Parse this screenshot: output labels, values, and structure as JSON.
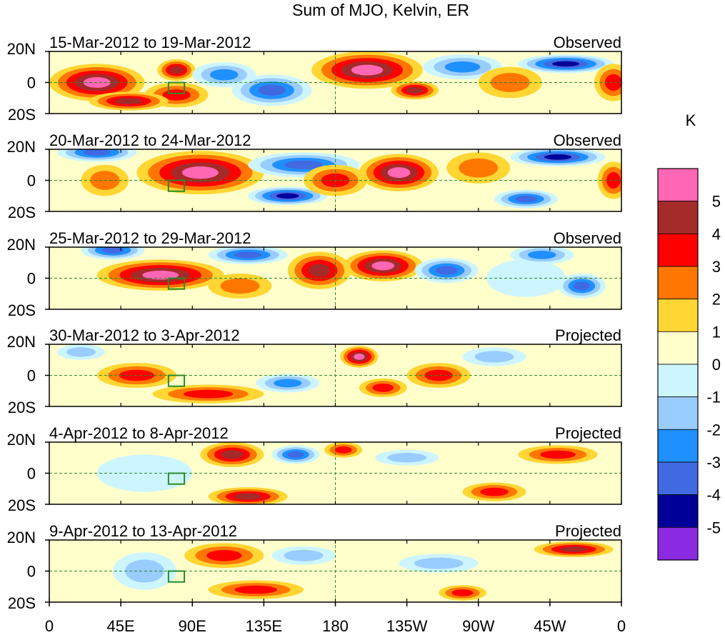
{
  "chart_data": {
    "type": "heatmap",
    "title": "Sum of MJO, Kelvin, ER",
    "colorbar": {
      "unit": "K",
      "labels": [
        "5",
        "4",
        "3",
        "2",
        "1",
        "0",
        "-1",
        "-2",
        "-3",
        "-4",
        "-5"
      ],
      "colors": [
        "#ff66b3",
        "#a52a2a",
        "#ff0000",
        "#ff7700",
        "#ffd633",
        "#ffffcc",
        "#ccf5ff",
        "#99ccff",
        "#1e90ff",
        "#4169e1",
        "#000099",
        "#8a2be2"
      ]
    },
    "x_ticks": [
      "0",
      "45E",
      "90E",
      "135E",
      "180",
      "135W",
      "90W",
      "45W",
      "0"
    ],
    "y_ticks": [
      "20N",
      "0",
      "20S"
    ],
    "xlim": [
      0,
      360
    ],
    "ylim": [
      -20,
      20
    ],
    "panels": [
      {
        "period": "15-Mar-2012 to 19-Mar-2012",
        "kind": "Observed"
      },
      {
        "period": "20-Mar-2012 to 24-Mar-2012",
        "kind": "Observed"
      },
      {
        "period": "25-Mar-2012 to 29-Mar-2012",
        "kind": "Observed"
      },
      {
        "period": "30-Mar-2012 to 3-Apr-2012",
        "kind": "Projected"
      },
      {
        "period": "4-Apr-2012 to 8-Apr-2012",
        "kind": "Projected"
      },
      {
        "period": "9-Apr-2012 to 13-Apr-2012",
        "kind": "Projected"
      }
    ],
    "blobs": [
      [
        {
          "lon": 30,
          "lat": 0,
          "level": 5,
          "rlon": 30,
          "rlat": 12
        },
        {
          "lon": 80,
          "lat": 8,
          "level": 4,
          "rlon": 12,
          "rlat": 7
        },
        {
          "lon": 80,
          "lat": -8,
          "level": 3,
          "rlon": 20,
          "rlat": 8
        },
        {
          "lon": 50,
          "lat": -12,
          "level": 4,
          "rlon": 25,
          "rlat": 6
        },
        {
          "lon": 140,
          "lat": -5,
          "level": -4,
          "rlon": 25,
          "rlat": 10
        },
        {
          "lon": 110,
          "lat": 5,
          "level": -3,
          "rlon": 20,
          "rlat": 8
        },
        {
          "lon": 200,
          "lat": 8,
          "level": 5,
          "rlon": 35,
          "rlat": 12
        },
        {
          "lon": 230,
          "lat": -5,
          "level": 4,
          "rlon": 15,
          "rlat": 6
        },
        {
          "lon": 260,
          "lat": 10,
          "level": -3,
          "rlon": 25,
          "rlat": 8
        },
        {
          "lon": 290,
          "lat": 0,
          "level": 2,
          "rlon": 20,
          "rlat": 10
        },
        {
          "lon": 325,
          "lat": 12,
          "level": -5,
          "rlon": 30,
          "rlat": 6
        },
        {
          "lon": 355,
          "lat": 0,
          "level": 3,
          "rlon": 12,
          "rlat": 12
        }
      ],
      [
        {
          "lon": 95,
          "lat": 5,
          "level": 5,
          "rlon": 40,
          "rlat": 14
        },
        {
          "lon": 30,
          "lat": 18,
          "level": -4,
          "rlon": 25,
          "rlat": 6
        },
        {
          "lon": 35,
          "lat": 0,
          "level": 2,
          "rlon": 15,
          "rlat": 10
        },
        {
          "lon": 160,
          "lat": 10,
          "level": -4,
          "rlon": 35,
          "rlat": 8
        },
        {
          "lon": 150,
          "lat": -10,
          "level": -5,
          "rlon": 25,
          "rlat": 6
        },
        {
          "lon": 220,
          "lat": 5,
          "level": 5,
          "rlon": 25,
          "rlat": 12
        },
        {
          "lon": 180,
          "lat": 0,
          "level": 3,
          "rlon": 20,
          "rlat": 10
        },
        {
          "lon": 270,
          "lat": 8,
          "level": 2,
          "rlon": 20,
          "rlat": 10
        },
        {
          "lon": 300,
          "lat": -12,
          "level": -4,
          "rlon": 20,
          "rlat": 6
        },
        {
          "lon": 320,
          "lat": 15,
          "level": -5,
          "rlon": 30,
          "rlat": 6
        },
        {
          "lon": 355,
          "lat": 0,
          "level": 3,
          "rlon": 10,
          "rlat": 12
        }
      ],
      [
        {
          "lon": 70,
          "lat": 2,
          "level": 5,
          "rlon": 40,
          "rlat": 10
        },
        {
          "lon": 40,
          "lat": 18,
          "level": -4,
          "rlon": 20,
          "rlat": 6
        },
        {
          "lon": 125,
          "lat": 15,
          "level": -4,
          "rlon": 25,
          "rlat": 6
        },
        {
          "lon": 120,
          "lat": -5,
          "level": 2,
          "rlon": 20,
          "rlat": 8
        },
        {
          "lon": 170,
          "lat": 5,
          "level": 4,
          "rlon": 20,
          "rlat": 12
        },
        {
          "lon": 210,
          "lat": 8,
          "level": 5,
          "rlon": 25,
          "rlat": 10
        },
        {
          "lon": 250,
          "lat": 5,
          "level": -4,
          "rlon": 20,
          "rlat": 8
        },
        {
          "lon": 300,
          "lat": 0,
          "level": -1,
          "rlon": 25,
          "rlat": 12
        },
        {
          "lon": 335,
          "lat": -5,
          "level": -4,
          "rlon": 15,
          "rlat": 8
        },
        {
          "lon": 310,
          "lat": 15,
          "level": -3,
          "rlon": 20,
          "rlat": 6
        }
      ],
      [
        {
          "lon": 55,
          "lat": 0,
          "level": 3,
          "rlon": 25,
          "rlat": 8
        },
        {
          "lon": 100,
          "lat": -12,
          "level": 3,
          "rlon": 35,
          "rlat": 6
        },
        {
          "lon": 195,
          "lat": 12,
          "level": 5,
          "rlon": 12,
          "rlat": 7
        },
        {
          "lon": 210,
          "lat": -8,
          "level": 3,
          "rlon": 15,
          "rlat": 6
        },
        {
          "lon": 245,
          "lat": 0,
          "level": 3,
          "rlon": 20,
          "rlat": 8
        },
        {
          "lon": 150,
          "lat": -5,
          "level": -3,
          "rlon": 20,
          "rlat": 6
        },
        {
          "lon": 280,
          "lat": 12,
          "level": -2,
          "rlon": 20,
          "rlat": 6
        },
        {
          "lon": 20,
          "lat": 15,
          "level": -2,
          "rlon": 15,
          "rlat": 5
        }
      ],
      [
        {
          "lon": 115,
          "lat": 12,
          "level": 4,
          "rlon": 20,
          "rlat": 8
        },
        {
          "lon": 125,
          "lat": -15,
          "level": 4,
          "rlon": 25,
          "rlat": 6
        },
        {
          "lon": 155,
          "lat": 12,
          "level": -4,
          "rlon": 15,
          "rlat": 6
        },
        {
          "lon": 185,
          "lat": 15,
          "level": 3,
          "rlon": 12,
          "rlat": 5
        },
        {
          "lon": 280,
          "lat": -12,
          "level": 3,
          "rlon": 20,
          "rlat": 6
        },
        {
          "lon": 320,
          "lat": 12,
          "level": 3,
          "rlon": 25,
          "rlat": 6
        },
        {
          "lon": 225,
          "lat": 10,
          "level": -2,
          "rlon": 20,
          "rlat": 5
        },
        {
          "lon": 60,
          "lat": 0,
          "level": -1,
          "rlon": 30,
          "rlat": 12
        }
      ],
      [
        {
          "lon": 110,
          "lat": 10,
          "level": 3,
          "rlon": 25,
          "rlat": 8
        },
        {
          "lon": 130,
          "lat": -12,
          "level": 3,
          "rlon": 30,
          "rlat": 6
        },
        {
          "lon": 60,
          "lat": 0,
          "level": -2,
          "rlon": 20,
          "rlat": 12
        },
        {
          "lon": 160,
          "lat": 10,
          "level": -2,
          "rlon": 20,
          "rlat": 6
        },
        {
          "lon": 245,
          "lat": 5,
          "level": -2,
          "rlon": 25,
          "rlat": 6
        },
        {
          "lon": 330,
          "lat": 14,
          "level": 4,
          "rlon": 25,
          "rlat": 5
        },
        {
          "lon": 260,
          "lat": -14,
          "level": 3,
          "rlon": 15,
          "rlat": 5
        }
      ]
    ]
  }
}
